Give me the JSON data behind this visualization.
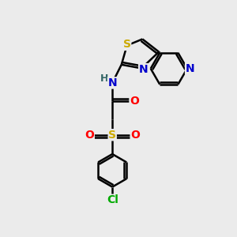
{
  "background_color": "#ebebeb",
  "bond_color": "#000000",
  "bond_width": 1.8,
  "atom_colors": {
    "C": "#000000",
    "N": "#0000cc",
    "O": "#ff0000",
    "S_thio": "#ccaa00",
    "S_sul": "#ccaa00",
    "Cl": "#00aa00",
    "H": "#336666"
  },
  "font_size": 10,
  "fig_size": [
    3.0,
    3.0
  ],
  "dpi": 100
}
